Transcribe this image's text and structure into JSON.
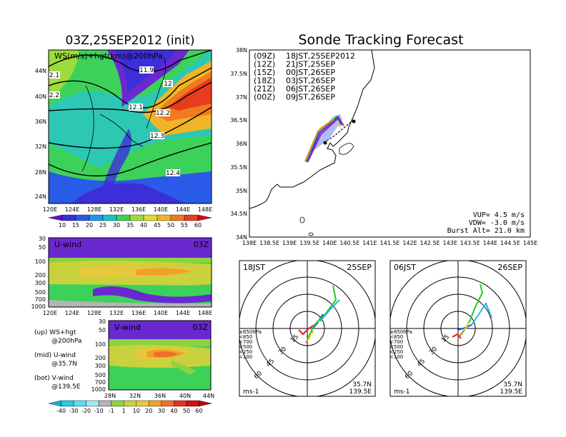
{
  "left_title": "03Z,25SEP2012 (init)",
  "right_title": "Sonde Tracking Forecast",
  "map_panel": {
    "label": "WS(m/s)+hgt(km)@200hPa",
    "lat_labels": [
      "44N",
      "40N",
      "36N",
      "32N",
      "28N",
      "24N"
    ],
    "lon_labels": [
      "120E",
      "124E",
      "128E",
      "132E",
      "136E",
      "140E",
      "144E",
      "148E"
    ],
    "contour_labels": [
      "11.9",
      "12",
      "12.1",
      "12.2",
      "12.3",
      "12.4",
      "2.1",
      "2.2"
    ]
  },
  "ws_colorbar": {
    "labels": [
      "10",
      "15",
      "20",
      "25",
      "30",
      "35",
      "40",
      "45",
      "50",
      "55",
      "60"
    ],
    "colors": [
      "#6a0fd0",
      "#3c2ed8",
      "#2a5ae8",
      "#1e96f0",
      "#10c8c0",
      "#3cd25a",
      "#9cdc3c",
      "#dcdc32",
      "#f0b428",
      "#f07a1e",
      "#e83c1e",
      "#d80a14"
    ]
  },
  "u_panel": {
    "label": "U-wind",
    "time": "03Z",
    "y_labels": [
      "30",
      "50",
      "100",
      "200",
      "300",
      "500",
      "700",
      "1000"
    ],
    "x_labels": [
      "120E",
      "124E",
      "128E",
      "132E",
      "136E",
      "140E",
      "144E",
      "148E"
    ]
  },
  "v_panel": {
    "label": "V-wind",
    "time": "03Z",
    "y_labels": [
      "30",
      "50",
      "100",
      "200",
      "300",
      "500",
      "700",
      "1000"
    ],
    "x_labels": [
      "28N",
      "32N",
      "36N",
      "40N",
      "44N"
    ]
  },
  "legend_notes": [
    {
      "a": "(up) WS+hgt",
      "b": "@200hPa"
    },
    {
      "a": "(mid) U-wind",
      "b": "@35.7N"
    },
    {
      "a": "(bot) V-wind",
      "b": "@139.5E"
    }
  ],
  "uv_colorbar": {
    "labels": [
      "-40",
      "-30",
      "-20",
      "-10",
      "-1",
      "1",
      "10",
      "20",
      "30",
      "40",
      "50",
      "60"
    ],
    "colors": [
      "#10b4d2",
      "#28c8e6",
      "#5adcf0",
      "#a0e6f5",
      "#b4b4b4",
      "#8cd241",
      "#c8d23c",
      "#e6c83c",
      "#f0a028",
      "#f06e28",
      "#e6321e",
      "#dc0a14",
      "#b40a0a"
    ]
  },
  "track_panel": {
    "lat_labels": [
      "38N",
      "37.5N",
      "37N",
      "36.5N",
      "36N",
      "35.5N",
      "35N",
      "34.5N",
      "34N"
    ],
    "lon_labels": [
      "138E",
      "138.5E",
      "139E",
      "139.5E",
      "140E",
      "140.5E",
      "141E",
      "141.5E",
      "142E",
      "142.5E",
      "143E",
      "143.5E",
      "144E",
      "144.5E",
      "145E"
    ],
    "legend": [
      {
        "z": "(09Z)",
        "t": "18JST,25SEP2012",
        "color": "#000000"
      },
      {
        "z": "(12Z)",
        "t": "21JST,25SEP",
        "color": "#a020c8"
      },
      {
        "z": "(15Z)",
        "t": "00JST,26SEP",
        "color": "#1e3cf0"
      },
      {
        "z": "(18Z)",
        "t": "03JST,26SEP",
        "color": "#1ec81e"
      },
      {
        "z": "(21Z)",
        "t": "06JST,26SEP",
        "color": "#f0c828"
      },
      {
        "z": "(00Z)",
        "t": "09JST,26SEP",
        "color": "#e68228"
      }
    ],
    "info": [
      "VUP= 4.5 m/s",
      "VDW= -3.0 m/s",
      "Burst Alt= 21.0 km"
    ]
  },
  "hodo_left": {
    "time": "18JST",
    "date": "25SEP",
    "loc1": "35.7N",
    "loc2": "139.5E",
    "unit": "ms-1",
    "rings": [
      "15",
      "30",
      "45",
      "60"
    ]
  },
  "hodo_right": {
    "time": "06JST",
    "date": "26SEP",
    "loc1": "35.7N",
    "loc2": "139.5E",
    "unit": "ms-1",
    "rings": [
      "15",
      "30",
      "45",
      "60"
    ]
  },
  "hodo_legend": [
    {
      "label": "≥850hPa",
      "color": "#e6141e"
    },
    {
      "label": "<850",
      "color": "#f08c28"
    },
    {
      "label": "<700",
      "color": "#e6dc32"
    },
    {
      "label": "<500",
      "color": "#28c828"
    },
    {
      "label": "<250",
      "color": "#28b4dc"
    },
    {
      "label": "<100",
      "color": "#2846e6"
    }
  ],
  "chart_data": {
    "type": "other",
    "description_panels": [
      "200hPa wind speed map",
      "U-wind cross section",
      "V-wind cross section",
      "sonde track map",
      "hodographs"
    ],
    "track_info": {
      "vup_ms": 4.5,
      "vdw_ms": -3.0,
      "burst_alt_km": 21.0
    }
  }
}
